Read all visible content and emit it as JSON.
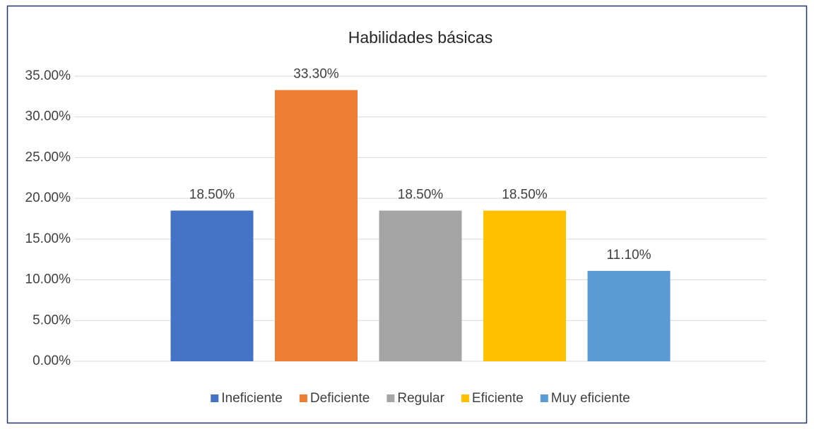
{
  "chart_data": {
    "type": "bar",
    "title": "Habilidades básicas",
    "categories": [
      null
    ],
    "series": [
      {
        "name": "Ineficiente",
        "color": "#4472c4",
        "values": [
          18.5
        ],
        "value_labels": [
          "18.50%"
        ]
      },
      {
        "name": "Deficiente",
        "color": "#ed7d31",
        "values": [
          33.3
        ],
        "value_labels": [
          "33.30%"
        ]
      },
      {
        "name": "Regular",
        "color": "#a5a5a5",
        "values": [
          18.5
        ],
        "value_labels": [
          "18.50%"
        ]
      },
      {
        "name": "Eficiente",
        "color": "#ffc000",
        "values": [
          18.5
        ],
        "value_labels": [
          "18.50%"
        ]
      },
      {
        "name": "Muy eficiente",
        "color": "#5b9bd5",
        "values": [
          11.1
        ],
        "value_labels": [
          "11.10%"
        ]
      }
    ],
    "ylim": [
      0,
      35
    ],
    "yticks": [
      {
        "value": 0,
        "label": "0.00%"
      },
      {
        "value": 5,
        "label": "5.00%"
      },
      {
        "value": 10,
        "label": "10.00%"
      },
      {
        "value": 15,
        "label": "15.00%"
      },
      {
        "value": 20,
        "label": "20.00%"
      },
      {
        "value": 25,
        "label": "25.00%"
      },
      {
        "value": 30,
        "label": "30.00%"
      },
      {
        "value": 35,
        "label": "35.00%"
      }
    ],
    "grid": true,
    "legend": "bottom"
  }
}
